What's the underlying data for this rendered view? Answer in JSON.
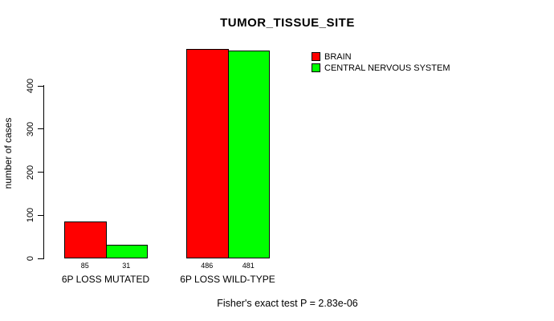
{
  "chart_data": {
    "type": "bar",
    "title": "TUMOR_TISSUE_SITE",
    "ylabel": "number of cases",
    "xlabel": "",
    "categories": [
      "6P LOSS MUTATED",
      "6P LOSS WILD-TYPE"
    ],
    "series": [
      {
        "name": "BRAIN",
        "color": "#ff0000",
        "values": [
          85,
          486
        ]
      },
      {
        "name": "CENTRAL NERVOUS SYSTEM",
        "color": "#00ff00",
        "values": [
          31,
          481
        ]
      }
    ],
    "bar_value_labels": [
      [
        85,
        31
      ],
      [
        486,
        481
      ]
    ],
    "yticks": [
      0,
      100,
      200,
      300,
      400
    ],
    "ylim": [
      0,
      400
    ],
    "grid": false,
    "legend_position": "top-right",
    "annotation": "Fisher's exact test P = 2.83e-06",
    "background": "#ffffff",
    "bar_border_color": "#000000"
  }
}
